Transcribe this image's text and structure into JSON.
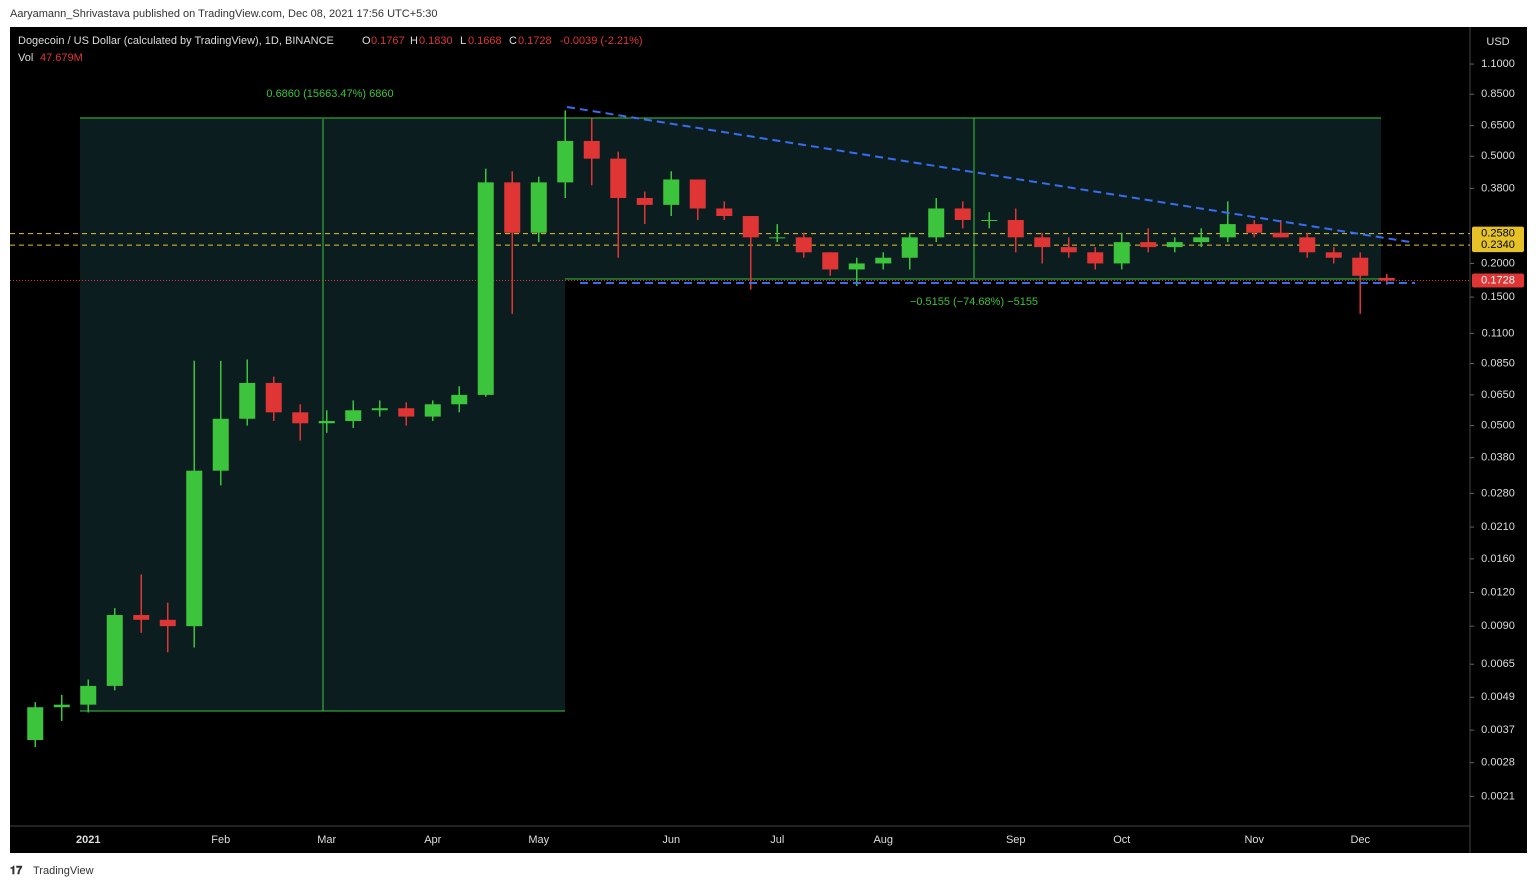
{
  "header": {
    "publisher": "Aaryamann_Shrivastava published on TradingView.com, Dec 08, 2021 17:56 UTC+5:30"
  },
  "footer": {
    "brand": "TradingView"
  },
  "chart_data": {
    "type": "candlestick",
    "legend": {
      "symbol": "Dogecoin / US Dollar (calculated by TradingView), 1D, BINANCE",
      "open_label": "O",
      "open": "0.1767",
      "high_label": "H",
      "high": "0.1830",
      "low_label": "L",
      "low": "0.1668",
      "close_label": "C",
      "close": "0.1728",
      "change": "-0.0039 (-2.21%)",
      "volume_label": "Vol",
      "volume": "47.679M"
    },
    "currency": "USD",
    "categories": [
      null,
      null,
      "2021",
      null,
      null,
      null,
      null,
      "Feb",
      null,
      null,
      null,
      "Mar",
      null,
      null,
      null,
      "Apr",
      null,
      null,
      null,
      "May",
      null,
      null,
      null,
      null,
      "Jun",
      null,
      null,
      null,
      "Jul",
      null,
      null,
      null,
      "Aug",
      null,
      null,
      null,
      null,
      "Sep",
      null,
      null,
      null,
      "Oct",
      null,
      null,
      null,
      null,
      "Nov",
      null,
      null,
      null,
      "Dec",
      null
    ],
    "open": [
      0.0034,
      0.0045,
      0.0046,
      0.0054,
      0.0099,
      0.0095,
      0.009,
      0.034,
      0.053,
      0.072,
      0.056,
      0.051,
      0.052,
      0.057,
      0.058,
      0.054,
      0.06,
      0.065,
      0.4,
      0.26,
      0.4,
      0.57,
      0.49,
      0.35,
      0.33,
      0.41,
      0.32,
      0.3,
      0.25,
      0.25,
      0.22,
      0.19,
      0.2,
      0.21,
      0.25,
      0.32,
      0.29,
      0.29,
      0.25,
      0.23,
      0.22,
      0.2,
      0.24,
      0.23,
      0.24,
      0.25,
      0.28,
      0.26,
      0.25,
      0.22,
      0.21,
      0.1767
    ],
    "high": [
      0.0047,
      0.005,
      0.0057,
      0.0105,
      0.014,
      0.011,
      0.087,
      0.087,
      0.088,
      0.076,
      0.06,
      0.057,
      0.062,
      0.062,
      0.061,
      0.062,
      0.07,
      0.45,
      0.44,
      0.42,
      0.74,
      0.69,
      0.52,
      0.37,
      0.44,
      0.41,
      0.34,
      0.3,
      0.28,
      0.26,
      0.22,
      0.21,
      0.22,
      0.26,
      0.35,
      0.34,
      0.31,
      0.32,
      0.26,
      0.25,
      0.23,
      0.26,
      0.27,
      0.25,
      0.27,
      0.34,
      0.29,
      0.29,
      0.26,
      0.23,
      0.22,
      0.183
    ],
    "low": [
      0.0032,
      0.004,
      0.0043,
      0.0052,
      0.0085,
      0.0072,
      0.0075,
      0.03,
      0.05,
      0.052,
      0.044,
      0.047,
      0.049,
      0.054,
      0.05,
      0.052,
      0.056,
      0.064,
      0.13,
      0.24,
      0.35,
      0.39,
      0.21,
      0.28,
      0.3,
      0.29,
      0.29,
      0.16,
      0.24,
      0.21,
      0.18,
      0.165,
      0.19,
      0.19,
      0.24,
      0.27,
      0.27,
      0.22,
      0.2,
      0.21,
      0.19,
      0.19,
      0.22,
      0.22,
      0.23,
      0.24,
      0.25,
      0.25,
      0.21,
      0.2,
      0.13,
      0.1668
    ],
    "close": [
      0.0045,
      0.0046,
      0.0054,
      0.0099,
      0.0095,
      0.009,
      0.034,
      0.053,
      0.072,
      0.056,
      0.051,
      0.052,
      0.057,
      0.058,
      0.054,
      0.06,
      0.065,
      0.4,
      0.26,
      0.4,
      0.57,
      0.49,
      0.35,
      0.33,
      0.41,
      0.32,
      0.3,
      0.25,
      0.25,
      0.22,
      0.19,
      0.2,
      0.21,
      0.25,
      0.32,
      0.29,
      0.29,
      0.25,
      0.23,
      0.22,
      0.2,
      0.24,
      0.23,
      0.24,
      0.25,
      0.28,
      0.26,
      0.25,
      0.22,
      0.21,
      0.18,
      0.1728
    ],
    "up_color": "#3cc43c",
    "down_color": "#e03535",
    "log_scale": true,
    "grid": false,
    "ylim": [
      0.00163,
      1.51
    ],
    "yticks": [
      {
        "value": 1.1,
        "label": "1.1000"
      },
      {
        "value": 0.85,
        "label": "0.8500"
      },
      {
        "value": 0.65,
        "label": "0.6500"
      },
      {
        "value": 0.5,
        "label": "0.5000"
      },
      {
        "value": 0.38,
        "label": "0.3800"
      },
      {
        "value": 0.2,
        "label": "0.2000"
      },
      {
        "value": 0.15,
        "label": "0.1500"
      },
      {
        "value": 0.11,
        "label": "0.1100"
      },
      {
        "value": 0.085,
        "label": "0.0850"
      },
      {
        "value": 0.065,
        "label": "0.0650"
      },
      {
        "value": 0.05,
        "label": "0.0500"
      },
      {
        "value": 0.038,
        "label": "0.0380"
      },
      {
        "value": 0.028,
        "label": "0.0280"
      },
      {
        "value": 0.021,
        "label": "0.0210"
      },
      {
        "value": 0.016,
        "label": "0.0160"
      },
      {
        "value": 0.012,
        "label": "0.0120"
      },
      {
        "value": 0.009,
        "label": "0.0090"
      },
      {
        "value": 0.0065,
        "label": "0.0065"
      },
      {
        "value": 0.0049,
        "label": "0.0049"
      },
      {
        "value": 0.0037,
        "label": "0.0037"
      },
      {
        "value": 0.0028,
        "label": "0.0028"
      },
      {
        "value": 0.0021,
        "label": "0.0021"
      }
    ],
    "levels": [
      {
        "value": 0.258,
        "label": "0.2580",
        "color": "#e6c229"
      },
      {
        "value": 0.234,
        "label": "0.2340",
        "color": "#e6c229"
      },
      {
        "value": 0.1728,
        "label": "0.1728",
        "color": "#e03535"
      }
    ],
    "annotations": [
      "0.6860 (15663.47%) 6860",
      "−0.5155 (−74.68%) −5155"
    ]
  }
}
